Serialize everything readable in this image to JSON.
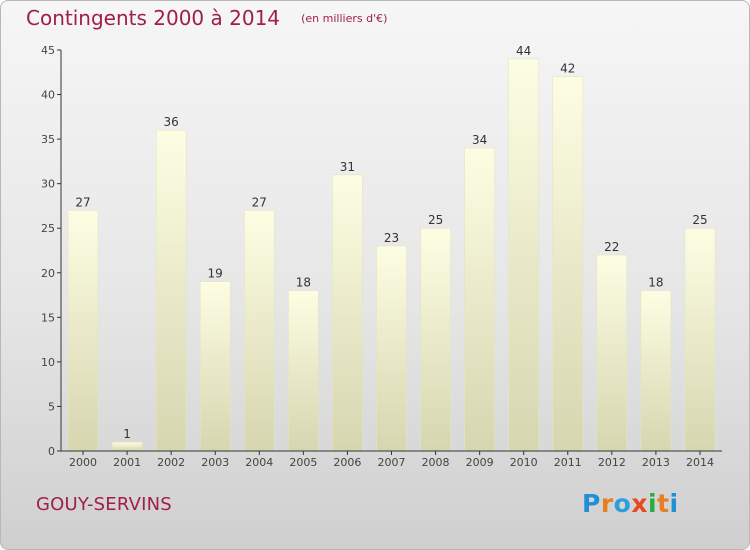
{
  "header": {
    "title": "Contingents 2000 à 2014",
    "subtitle": "(en milliers d'€)"
  },
  "footer": {
    "place": "GOUY-SERVINS",
    "logo": "Proxiti"
  },
  "colors": {
    "title": "#a01e4a",
    "bar_top": "#fdfde3",
    "bar_bottom": "#d6d6b0",
    "axis": "#333333",
    "logo_letters": [
      "#1f8fd6",
      "#e67e22",
      "#2c9fd9",
      "#e8481e",
      "#27ae3b",
      "#e67e22",
      "#1f8fd6"
    ]
  },
  "chart_data": {
    "type": "bar",
    "title": "Contingents 2000 à 2014",
    "subtitle": "(en milliers d'€)",
    "categories": [
      "2000",
      "2001",
      "2002",
      "2003",
      "2004",
      "2005",
      "2006",
      "2007",
      "2008",
      "2009",
      "2010",
      "2011",
      "2012",
      "2013",
      "2014"
    ],
    "values": [
      27,
      1,
      36,
      19,
      27,
      18,
      31,
      23,
      25,
      34,
      44,
      42,
      22,
      18,
      25
    ],
    "ylim": [
      0,
      45
    ],
    "yticks": [
      0,
      5,
      10,
      15,
      20,
      25,
      30,
      35,
      40,
      45
    ],
    "grid": false,
    "data_labels": true
  }
}
